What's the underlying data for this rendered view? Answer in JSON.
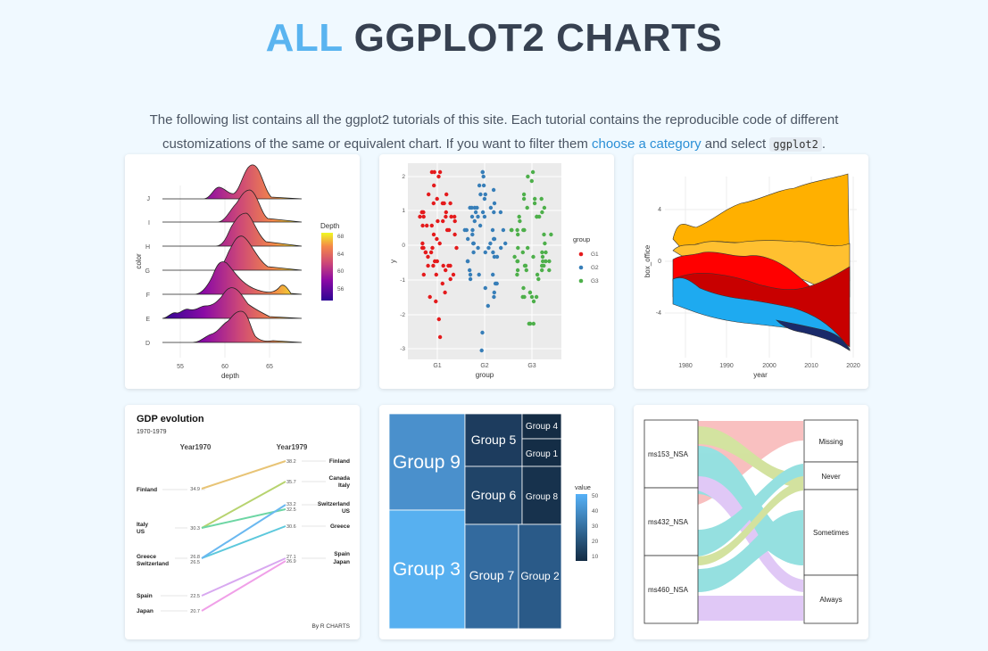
{
  "header": {
    "title_accent": "ALL",
    "title_rest": "GGPLOT2 CHARTS",
    "intro_part1": "The following list contains all the ggplot2 tutorials of this site. Each tutorial contains the reproducible code of different customizations of the same or equivalent chart. If you want to filter them ",
    "intro_link": "choose a category",
    "intro_part2": " and select ",
    "intro_code": "ggplot2",
    "intro_part3": "."
  },
  "colors": {
    "accent": "#5ab4f0",
    "link": "#2b8fd6",
    "background": "#f0f9ff"
  },
  "cards": [
    {
      "chart_type": "ridgeline",
      "ylabel": "color",
      "xlabel": "depth",
      "categories": [
        "J",
        "I",
        "H",
        "G",
        "F",
        "E",
        "D"
      ],
      "x_ticks": [
        "55",
        "60",
        "65"
      ],
      "legend_title": "Depth",
      "legend_ticks": [
        "68",
        "64",
        "60",
        "56"
      ]
    },
    {
      "chart_type": "beeswarm",
      "xlabel": "group",
      "ylabel": "y",
      "x_ticks": [
        "G1",
        "G2",
        "G3"
      ],
      "y_ticks": [
        "2",
        "1",
        "0",
        "-1",
        "-2",
        "-3"
      ],
      "legend_title": "group",
      "legend_items": [
        "G1",
        "G2",
        "G3"
      ],
      "series_colors": [
        "#e41a1c",
        "#377eb8",
        "#4daf4a"
      ]
    },
    {
      "chart_type": "streamgraph",
      "ylabel": "box_office",
      "xlabel": "year",
      "x_ticks": [
        "1980",
        "1990",
        "2000",
        "2010",
        "2020"
      ],
      "y_ticks": [
        "4",
        "0",
        "-4"
      ]
    },
    {
      "chart_type": "slope",
      "title": "GDP evolution",
      "subtitle": "1970-1979",
      "col_left": "Year1970",
      "col_right": "Year1979",
      "left_labels": [
        {
          "text": "Finland",
          "value": "34.9"
        },
        {
          "text": "Italy",
          "value": "30.3"
        },
        {
          "text": "US",
          "value": ""
        },
        {
          "text": "Greece",
          "value": "26.8"
        },
        {
          "text": "Switzerland",
          "value": "26.5"
        },
        {
          "text": "Spain",
          "value": "22.5"
        },
        {
          "text": "Japan",
          "value": "20.7"
        }
      ],
      "right_labels": [
        {
          "text": "Finland",
          "value": "38.2"
        },
        {
          "text": "Canada",
          "value": "35.7"
        },
        {
          "text": "Italy",
          "value": ""
        },
        {
          "text": "Switzerland",
          "value": "33.2"
        },
        {
          "text": "US",
          "value": "32.5"
        },
        {
          "text": "Greece",
          "value": "30.6"
        },
        {
          "text": "Spain",
          "value": "27.1"
        },
        {
          "text": "Japan",
          "value": "26.9"
        }
      ],
      "caption": "By R CHARTS"
    },
    {
      "chart_type": "treemap",
      "tiles": [
        "Group 9",
        "Group 3",
        "Group 5",
        "Group 6",
        "Group 4",
        "Group 1",
        "Group 8",
        "Group 7",
        "Group 2"
      ],
      "legend_title": "value",
      "legend_ticks": [
        "50",
        "40",
        "30",
        "20",
        "10"
      ]
    },
    {
      "chart_type": "alluvial",
      "left_nodes": [
        "ms153_NSA",
        "ms432_NSA",
        "ms460_NSA"
      ],
      "right_nodes": [
        "Missing",
        "Never",
        "Sometimes",
        "Always"
      ]
    }
  ]
}
